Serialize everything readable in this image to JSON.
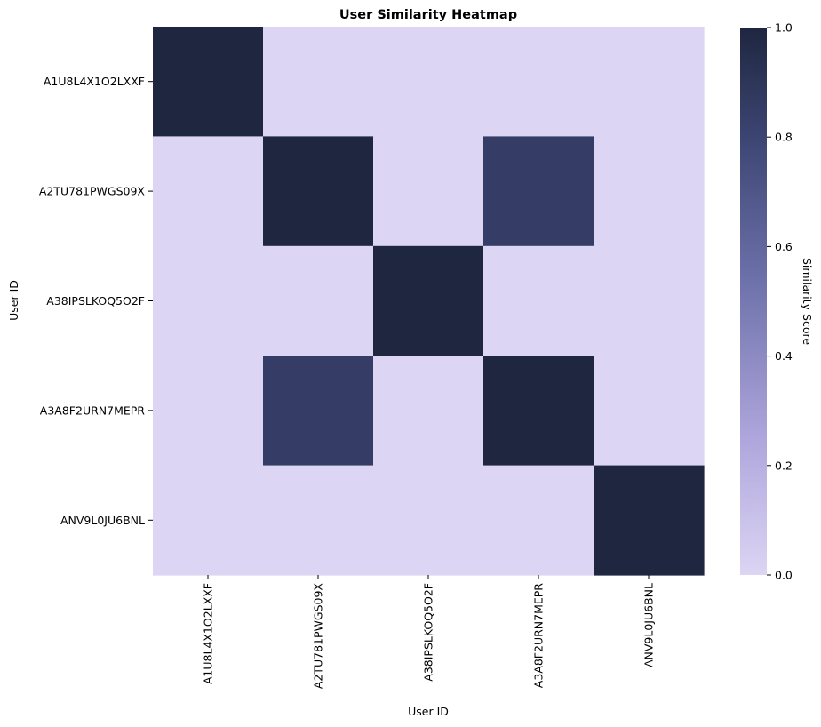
{
  "chart_data": {
    "type": "heatmap",
    "title": "User Similarity Heatmap",
    "xlabel": "User ID",
    "ylabel": "User ID",
    "x_categories": [
      "A1U8L4X1O2LXXF",
      "A2TU781PWGS09X",
      "A38IPSLKOQ5O2F",
      "A3A8F2URN7MEPR",
      "ANV9L0JU6BNL"
    ],
    "y_categories": [
      "A1U8L4X1O2LXXF",
      "A2TU781PWGS09X",
      "A38IPSLKOQ5O2F",
      "A3A8F2URN7MEPR",
      "ANV9L0JU6BNL"
    ],
    "values": [
      [
        1.0,
        0.0,
        0.0,
        0.0,
        0.0
      ],
      [
        0.0,
        1.0,
        0.0,
        0.85,
        0.0
      ],
      [
        0.0,
        0.0,
        1.0,
        0.0,
        0.0
      ],
      [
        0.0,
        0.85,
        0.0,
        1.0,
        0.0
      ],
      [
        0.0,
        0.0,
        0.0,
        0.0,
        1.0
      ]
    ],
    "colorbar": {
      "label": "Similarity Score",
      "range": [
        0.0,
        1.0
      ],
      "ticks": [
        "0.0",
        "0.2",
        "0.4",
        "0.6",
        "0.8",
        "1.0"
      ],
      "colormap": [
        "#dcd5f3",
        "#aea6dc",
        "#6b6fa8",
        "#3c4572",
        "#1f2640"
      ]
    },
    "grid": false
  }
}
